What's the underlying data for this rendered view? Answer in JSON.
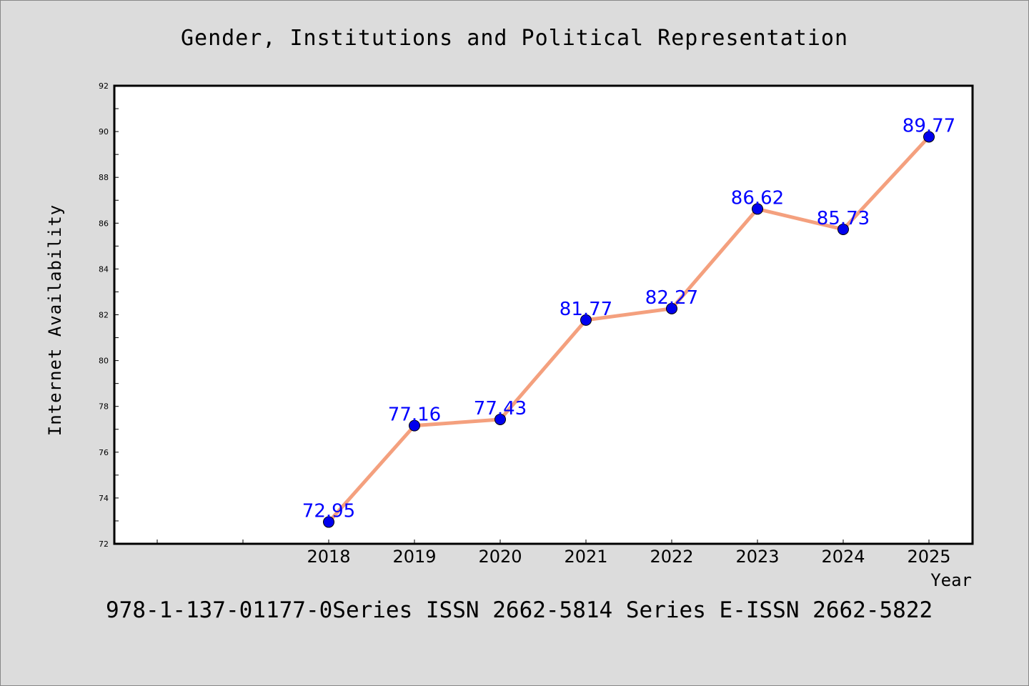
{
  "chart_data": {
    "type": "line",
    "title": "Gender, Institutions and Political Representation",
    "xlabel": "Year",
    "ylabel": "Internet Availability",
    "x": [
      "2018",
      "2019",
      "2020",
      "2021",
      "2022",
      "2023",
      "2024",
      "2025"
    ],
    "series": [
      {
        "values": [
          72.95,
          77.16,
          77.43,
          81.77,
          82.27,
          86.62,
          85.73,
          89.77
        ],
        "labels": [
          "72.95",
          "77.16",
          "77.43",
          "81.77",
          "82.27",
          "86.62",
          "85.73",
          "89.77"
        ],
        "line_color": "#f4a07e",
        "marker_color": "#0000ee"
      }
    ],
    "ylim": [
      72,
      92
    ],
    "yticks": [
      "72",
      "74",
      "76",
      "78",
      "80",
      "82",
      "84",
      "86",
      "88",
      "90",
      "92"
    ],
    "grid": false,
    "legend": "none"
  },
  "footer": {
    "text": "978-1-137-01177-0Series ISSN 2662-5814 Series E-ISSN 2662-5822"
  },
  "colors": {
    "background": "#dcdcdc",
    "plot_background": "#ffffff",
    "label_color": "#0000ff"
  }
}
